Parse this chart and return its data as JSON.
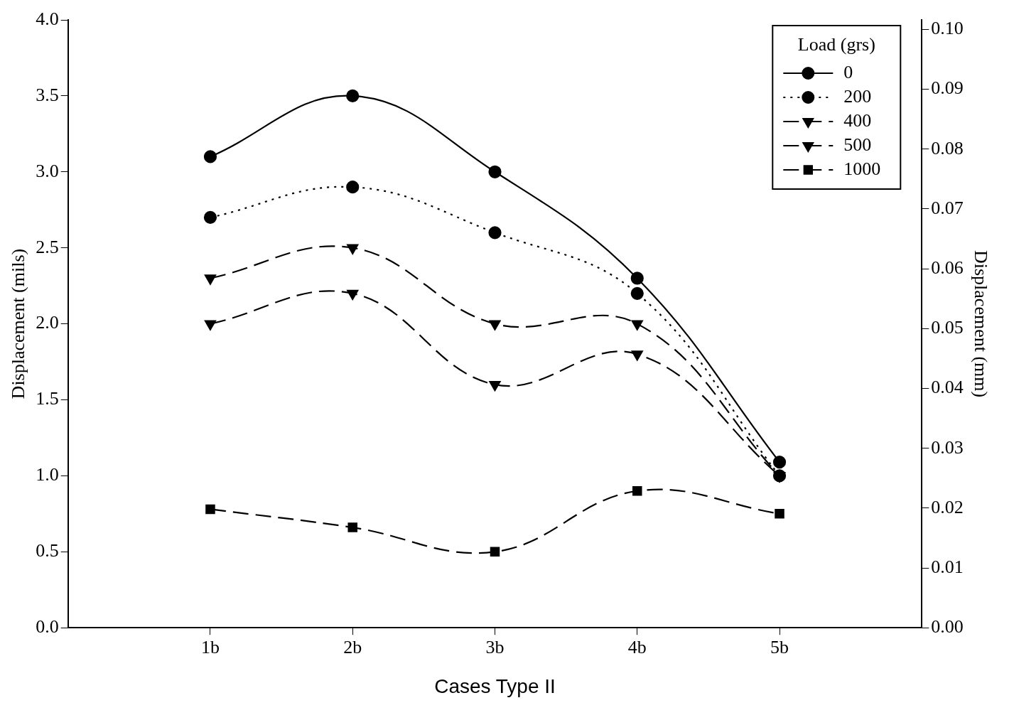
{
  "chart_data": {
    "type": "line",
    "xlabel": "Cases Type II",
    "ylabel": "Displacement (mils)",
    "y2label": "Displacement (mm)",
    "legend_title": "Load (grs)",
    "categories": [
      "1b",
      "2b",
      "3b",
      "4b",
      "5b"
    ],
    "series": [
      {
        "name": "0",
        "color": "#000000",
        "marker": "circle",
        "line_style": "solid",
        "values": [
          3.1,
          3.5,
          3.0,
          2.3,
          1.09
        ]
      },
      {
        "name": "200",
        "color": "#000000",
        "marker": "circle",
        "line_style": "dotted",
        "values": [
          2.7,
          2.9,
          2.6,
          2.2,
          1.0
        ]
      },
      {
        "name": "400",
        "color": "#000000",
        "marker": "triangle",
        "line_style": "dashed",
        "values": [
          2.3,
          2.5,
          2.0,
          2.0,
          1.0
        ]
      },
      {
        "name": "500",
        "color": "#000000",
        "marker": "triangle",
        "line_style": "dashed",
        "values": [
          2.0,
          2.2,
          1.6,
          1.8,
          1.0
        ]
      },
      {
        "name": "1000",
        "color": "#000000",
        "marker": "square",
        "line_style": "dashed",
        "values": [
          0.78,
          0.66,
          0.5,
          0.9,
          0.75
        ]
      }
    ],
    "ylim": [
      0,
      4.0
    ],
    "yticks": [
      {
        "value": 0,
        "label": "0.0"
      },
      {
        "value": 0.5,
        "label": "0.5"
      },
      {
        "value": 1,
        "label": "1.0"
      },
      {
        "value": 1.5,
        "label": "1.5"
      },
      {
        "value": 2,
        "label": "2.0"
      },
      {
        "value": 2.5,
        "label": "2.5"
      },
      {
        "value": 3,
        "label": "3.0"
      },
      {
        "value": 3.5,
        "label": "3.5"
      },
      {
        "value": 4,
        "label": "4.0"
      }
    ],
    "y2lim": [
      0,
      0.1016
    ],
    "y2ticks": [
      {
        "value": 0,
        "label": "0.00"
      },
      0.01,
      0.02,
      0.03,
      0.04,
      0.05,
      0.06,
      0.07,
      0.08,
      0.09,
      {
        "value": 0.1,
        "label": "0.10"
      }
    ],
    "grid": false,
    "legend": "top right"
  }
}
